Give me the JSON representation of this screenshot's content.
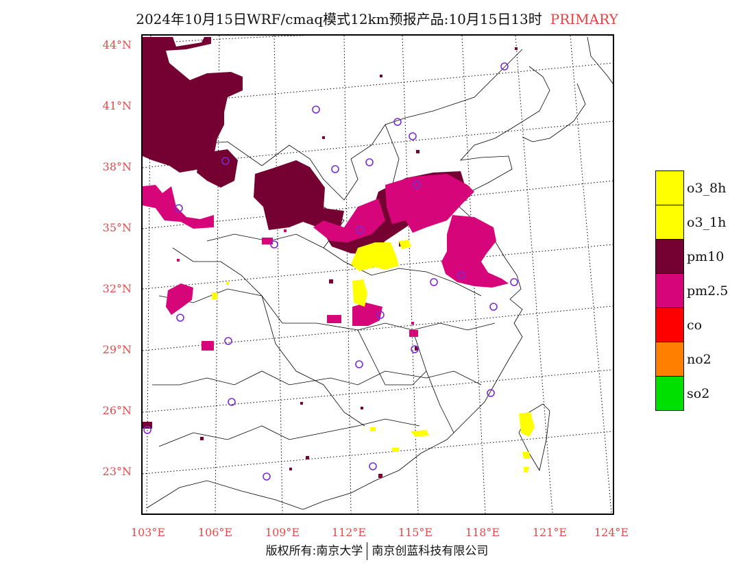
{
  "title": {
    "main": "2024年10月15日WRF/cmaq模式12km预报产品:10月15日13时",
    "tag": "PRIMARY"
  },
  "axes": {
    "lat_labels": [
      "44°N",
      "41°N",
      "38°N",
      "35°N",
      "32°N",
      "29°N",
      "26°N",
      "23°N"
    ],
    "lon_labels": [
      "103°E",
      "106°E",
      "109°E",
      "112°E",
      "115°E",
      "118°E",
      "121°E",
      "124°E"
    ]
  },
  "legend": [
    {
      "label": "o3_8h",
      "color": "#ffff00"
    },
    {
      "label": "o3_1h",
      "color": "#ffff00"
    },
    {
      "label": "pm10",
      "color": "#750032"
    },
    {
      "label": "pm2.5",
      "color": "#d6067a"
    },
    {
      "label": "co",
      "color": "#ff0000"
    },
    {
      "label": "no2",
      "color": "#ff8000"
    },
    {
      "label": "so2",
      "color": "#00e000"
    }
  ],
  "colors": {
    "pm10": "#750032",
    "pm25": "#d6067a",
    "o3": "#ffff00",
    "station": "#7a2bd6",
    "axis_label": "#e24a4a"
  },
  "footer": {
    "left": "版权所有:南京大学",
    "right": "南京创蓝科技有限公司"
  }
}
